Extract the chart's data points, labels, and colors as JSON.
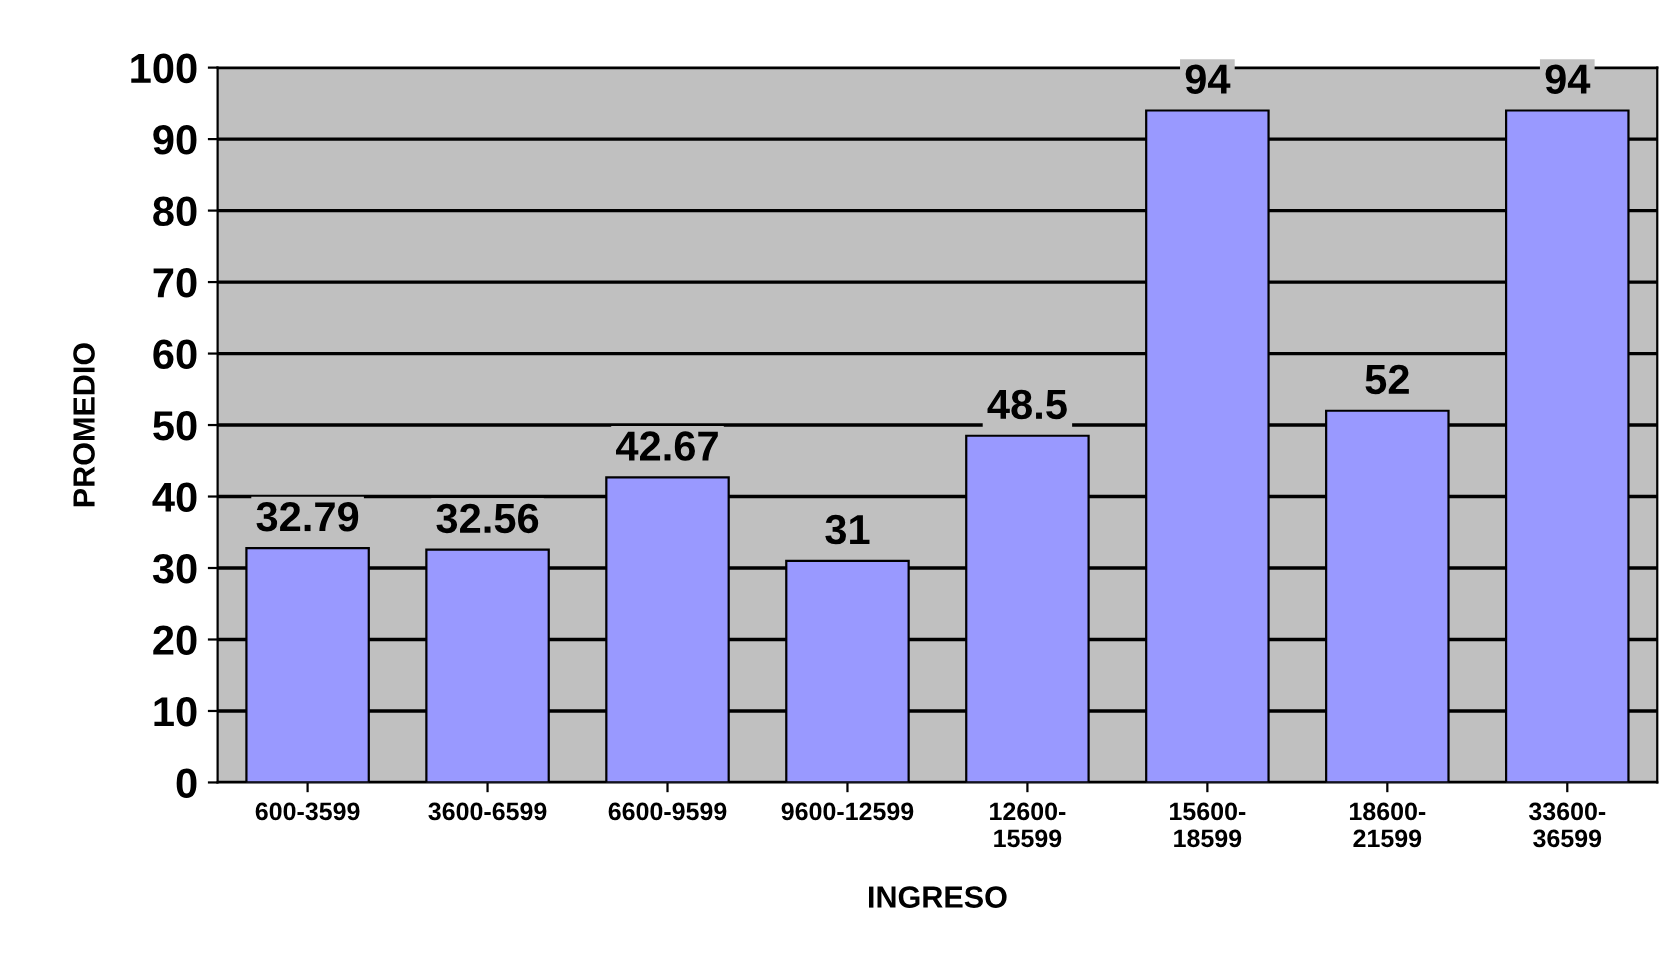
{
  "chart_data": {
    "type": "bar",
    "xlabel": "INGRESO",
    "ylabel": "PROMEDIO",
    "categories": [
      "600-3599",
      "3600-6599",
      "6600-9599",
      "9600-12599",
      "12600-15599",
      "15600-18599",
      "18600-21599",
      "33600-36599"
    ],
    "values": [
      32.79,
      32.56,
      42.67,
      31,
      48.5,
      94,
      52,
      94
    ],
    "color": "#9999ff",
    "ylim": [
      0,
      100
    ],
    "yticks": [
      0,
      10,
      20,
      30,
      40,
      50,
      60,
      70,
      80,
      90,
      100
    ],
    "grid": "y",
    "data_labels": true
  }
}
